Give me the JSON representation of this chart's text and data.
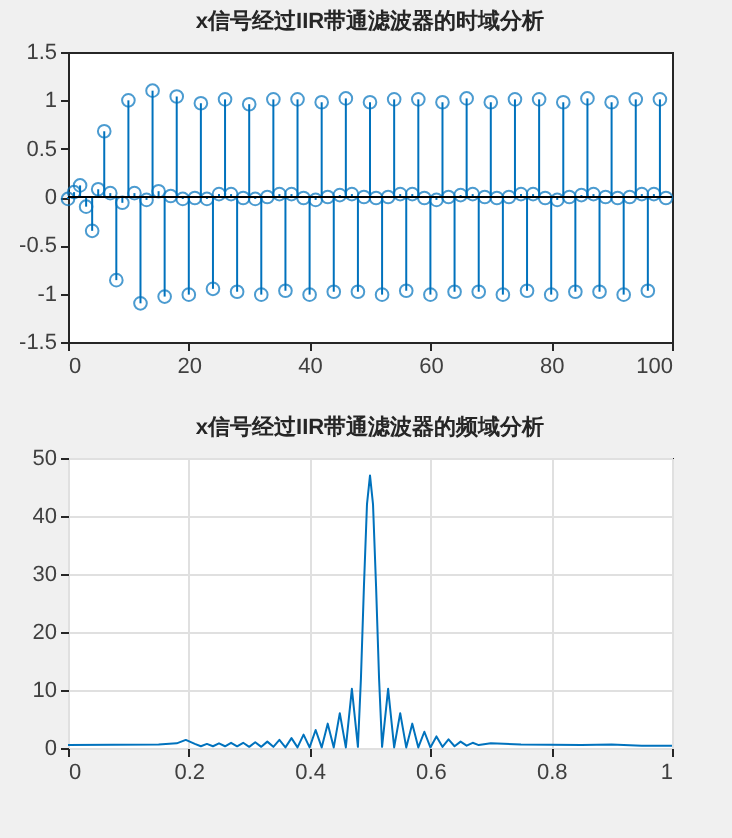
{
  "chart_data": [
    {
      "type": "lollipop",
      "title": "x信号经过IIR带通滤波器的时域分析",
      "marker": "circle",
      "x": [
        0,
        1,
        2,
        3,
        4,
        5,
        6,
        7,
        8,
        9,
        10,
        11,
        12,
        13,
        14,
        15,
        16,
        17,
        18,
        19,
        20,
        21,
        22,
        23,
        24,
        25,
        26,
        27,
        28,
        29,
        30,
        31,
        32,
        33,
        34,
        35,
        36,
        37,
        38,
        39,
        40,
        41,
        42,
        43,
        44,
        45,
        46,
        47,
        48,
        49,
        50,
        51,
        52,
        53,
        54,
        55,
        56,
        57,
        58,
        59,
        60,
        61,
        62,
        63,
        64,
        65,
        66,
        67,
        68,
        69,
        70,
        71,
        72,
        73,
        74,
        75,
        76,
        77,
        78,
        79,
        80,
        81,
        82,
        83,
        84,
        85,
        86,
        87,
        88,
        89,
        90,
        91,
        92,
        93,
        94,
        95,
        96,
        97,
        98,
        99
      ],
      "series": [
        {
          "color": "#0072bd",
          "values": [
            -0.02,
            0.05,
            0.12,
            -0.1,
            -0.35,
            0.08,
            0.68,
            0.04,
            -0.86,
            -0.06,
            1.0,
            0.04,
            -1.1,
            -0.03,
            1.1,
            0.06,
            -1.03,
            0.01,
            1.04,
            -0.02,
            -1.01,
            -0.01,
            0.97,
            -0.02,
            -0.95,
            0.03,
            1.01,
            0.03,
            -0.98,
            -0.01,
            0.96,
            -0.02,
            -1.01,
            0.0,
            1.01,
            0.03,
            -0.97,
            0.03,
            1.01,
            -0.01,
            -1.01,
            -0.03,
            0.98,
            0.0,
            -0.98,
            0.02,
            1.02,
            0.03,
            -0.98,
            0.0,
            0.98,
            -0.01,
            -1.01,
            0.0,
            1.01,
            0.03,
            -0.97,
            0.03,
            1.01,
            -0.01,
            -1.01,
            -0.03,
            0.98,
            0.0,
            -0.98,
            0.02,
            1.02,
            0.03,
            -0.98,
            0.0,
            0.98,
            -0.01,
            -1.01,
            0.0,
            1.01,
            0.03,
            -0.97,
            0.03,
            1.01,
            -0.01,
            -1.01,
            -0.03,
            0.98,
            0.0,
            -0.98,
            0.02,
            1.02,
            0.03,
            -0.98,
            0.0,
            0.98,
            -0.01,
            -1.01,
            0.0,
            1.01,
            0.03,
            -0.97,
            0.03,
            1.01,
            -0.01
          ]
        }
      ],
      "ref_lines": [
        {
          "axis": "y",
          "value": 0,
          "color": "#000000"
        }
      ],
      "xlim": [
        0,
        100
      ],
      "xticks": [
        0,
        20,
        40,
        60,
        80,
        100
      ],
      "ylim": [
        -1.5,
        1.5
      ],
      "yticks": [
        -1.5,
        -1,
        -0.5,
        0,
        0.5,
        1,
        1.5
      ],
      "grid": false
    },
    {
      "type": "line",
      "title": "x信号经过IIR带通滤波器的频域分析",
      "grid": true,
      "series": [
        {
          "color": "#0072bd",
          "x": [
            0,
            0.15,
            0.18,
            0.195,
            0.21,
            0.22,
            0.23,
            0.24,
            0.25,
            0.26,
            0.27,
            0.28,
            0.29,
            0.3,
            0.31,
            0.32,
            0.33,
            0.34,
            0.35,
            0.36,
            0.37,
            0.38,
            0.39,
            0.4,
            0.41,
            0.42,
            0.43,
            0.44,
            0.45,
            0.46,
            0.47,
            0.48,
            0.485,
            0.49,
            0.495,
            0.5,
            0.505,
            0.51,
            0.515,
            0.52,
            0.53,
            0.54,
            0.55,
            0.56,
            0.57,
            0.58,
            0.59,
            0.6,
            0.61,
            0.62,
            0.63,
            0.64,
            0.65,
            0.66,
            0.67,
            0.68,
            0.7,
            0.75,
            0.85,
            0.9,
            0.95,
            1
          ],
          "values": [
            0.5,
            0.6,
            0.8,
            1.4,
            0.7,
            0.3,
            0.7,
            0.3,
            0.8,
            0.3,
            0.9,
            0.3,
            0.9,
            0.2,
            1.0,
            0.2,
            1.1,
            0.2,
            1.4,
            0.1,
            1.7,
            0.1,
            2.3,
            0.1,
            3.1,
            0.1,
            4.2,
            0.1,
            6,
            0.1,
            10.2,
            0.2,
            12,
            28,
            42,
            47,
            42,
            28,
            12,
            0.2,
            10.2,
            0.1,
            6,
            0.1,
            4.2,
            0.1,
            2.8,
            0.1,
            2.0,
            0.2,
            1.5,
            0.3,
            1.1,
            0.4,
            0.9,
            0.5,
            0.8,
            0.6,
            0.5,
            0.6,
            0.4,
            0.4
          ]
        }
      ],
      "xlim": [
        0,
        1
      ],
      "xticks": [
        0,
        0.2,
        0.4,
        0.6,
        0.8,
        1
      ],
      "ylim": [
        0,
        50
      ],
      "yticks": [
        0,
        10,
        20,
        30,
        40,
        50
      ]
    }
  ]
}
